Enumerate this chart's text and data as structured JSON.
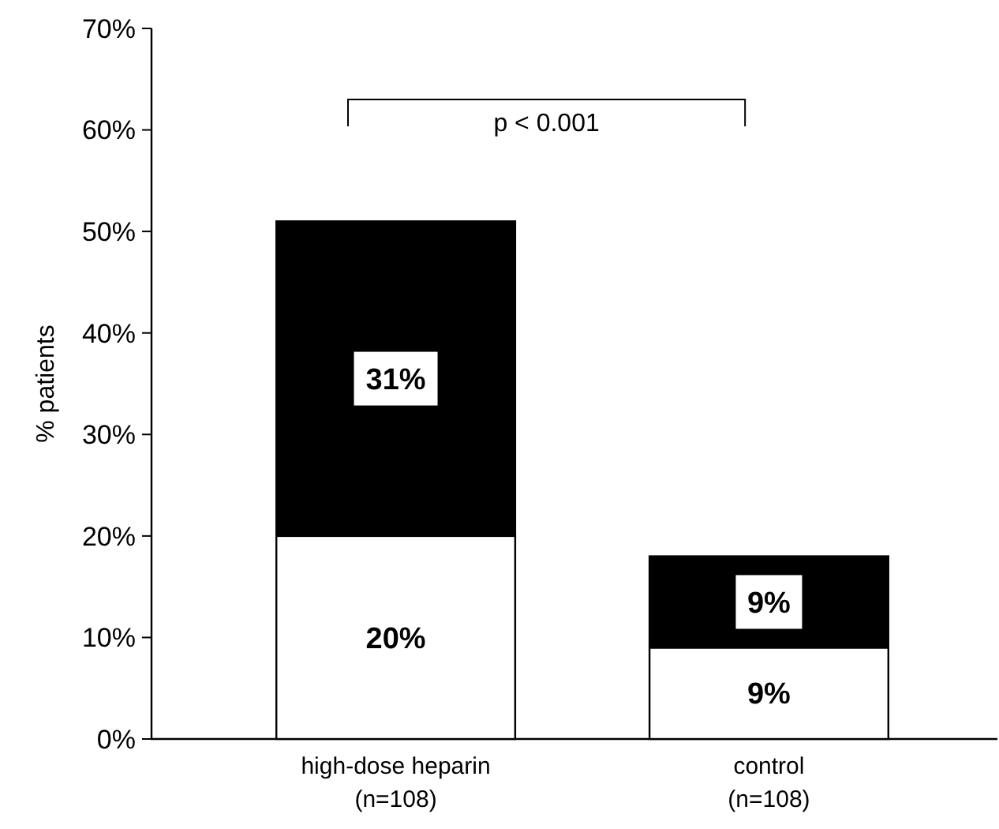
{
  "chart_data": {
    "type": "bar",
    "stacked": true,
    "ylabel": "% patients",
    "categories": [
      "high-dose heparin\n(n=108)",
      "control\n(n=108)"
    ],
    "series": [
      {
        "color": "#ffffff",
        "values": [
          20,
          9
        ],
        "value_labels": [
          "20%",
          "9%"
        ]
      },
      {
        "color": "#000000",
        "values": [
          31,
          9
        ],
        "value_labels": [
          "31%",
          "9%"
        ]
      }
    ],
    "ylim": [
      0,
      70
    ],
    "yticks": [
      {
        "value": 0,
        "label": "0%"
      },
      {
        "value": 10,
        "label": "10%"
      },
      {
        "value": 20,
        "label": "20%"
      },
      {
        "value": 30,
        "label": "30%"
      },
      {
        "value": 40,
        "label": "40%"
      },
      {
        "value": 50,
        "label": "50%"
      },
      {
        "value": 60,
        "label": "60%"
      },
      {
        "value": 70,
        "label": "70%"
      }
    ],
    "annotations": [
      "p < 0.001"
    ]
  }
}
